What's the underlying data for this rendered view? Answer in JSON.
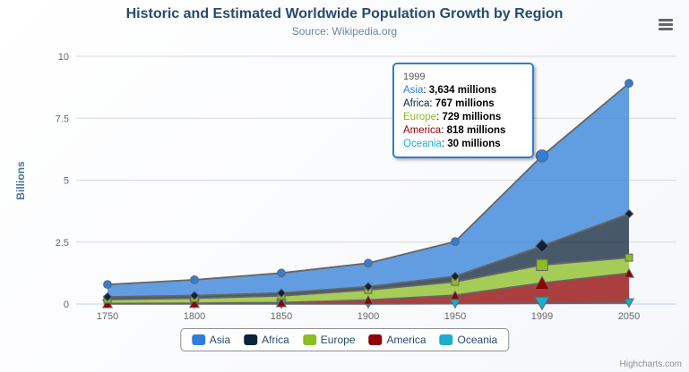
{
  "chart_data": {
    "type": "area",
    "stacking": "normal",
    "title": "Historic and Estimated Worldwide Population Growth by Region",
    "subtitle": "Source: Wikipedia.org",
    "categories": [
      "1750",
      "1800",
      "1850",
      "1900",
      "1950",
      "1999",
      "2050"
    ],
    "ylabel": "Billions",
    "ylim": [
      0,
      10
    ],
    "yticks": [
      "0",
      "2.5",
      "5",
      "7.5",
      "10"
    ],
    "unit": "millions",
    "grid": "horizontal-only",
    "legend_position": "bottom-center",
    "series": [
      {
        "name": "Asia",
        "color": "#2f7ed8",
        "marker": "circle",
        "values_millions": [
          502,
          635,
          809,
          947,
          1402,
          3634,
          5268
        ]
      },
      {
        "name": "Africa",
        "color": "#0d233a",
        "marker": "diamond",
        "values_millions": [
          106,
          107,
          111,
          133,
          221,
          767,
          1766
        ]
      },
      {
        "name": "Europe",
        "color": "#8bbc21",
        "marker": "square",
        "values_millions": [
          163,
          203,
          276,
          408,
          547,
          729,
          628
        ]
      },
      {
        "name": "America",
        "color": "#910000",
        "marker": "triangle-up",
        "values_millions": [
          18,
          31,
          54,
          156,
          339,
          818,
          1201
        ]
      },
      {
        "name": "Oceania",
        "color": "#1aadce",
        "marker": "triangle-down",
        "values_millions": [
          2,
          2,
          2,
          6,
          13,
          30,
          46
        ]
      }
    ]
  },
  "tooltip": {
    "header": "1999",
    "category_index": 5,
    "rows": [
      {
        "name": "Asia",
        "color": "#2f7ed8",
        "value": "3,634 millions"
      },
      {
        "name": "Africa",
        "color": "#0d233a",
        "value": "767 millions"
      },
      {
        "name": "Europe",
        "color": "#8bbc21",
        "value": "729 millions"
      },
      {
        "name": "America",
        "color": "#910000",
        "value": "818 millions"
      },
      {
        "name": "Oceania",
        "color": "#1aadce",
        "value": "30 millions"
      }
    ]
  },
  "credits": "Highcharts.com",
  "colors": {
    "title": "#274b6d",
    "subtitle": "#6d869f",
    "axis_title": "#4d759e",
    "axis_labels": "#666666",
    "grid": "#d8d8d8",
    "axis_line": "#c0d0e0",
    "series_line": "#666666",
    "legend_text": "#274b6d",
    "legend_border": "#909090",
    "export_icon": "#666666",
    "credits_text": "#909090"
  }
}
